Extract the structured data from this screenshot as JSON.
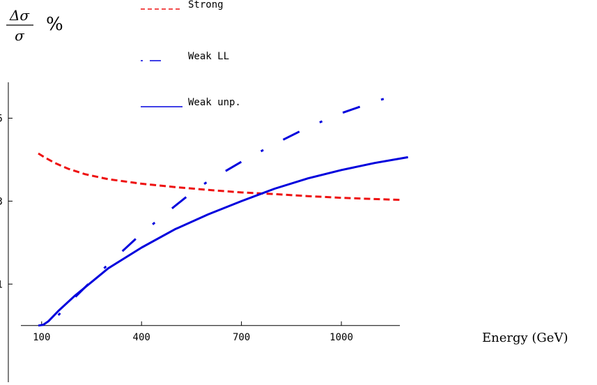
{
  "chart_data": {
    "type": "line",
    "ylabel": {
      "numerator": "Δσ",
      "denominator": "σ",
      "unit": "%"
    },
    "xlabel": "Energy (GeV)",
    "xlim": [
      -25,
      1230
    ],
    "ylim": [
      -1.4,
      6.0
    ],
    "x_ticks": [
      100,
      400,
      700,
      1000
    ],
    "y_ticks": [
      1,
      3,
      5
    ],
    "grid": false,
    "legend_position": "top-center",
    "series": [
      {
        "name": "Strong",
        "color": "#ee1111",
        "style": "dashed",
        "x": [
          90,
          110,
          140,
          180,
          230,
          300,
          400,
          500,
          600,
          700,
          800,
          900,
          1000,
          1100,
          1180
        ],
        "y": [
          4.15,
          4.05,
          3.92,
          3.78,
          3.65,
          3.53,
          3.42,
          3.34,
          3.27,
          3.21,
          3.17,
          3.12,
          3.08,
          3.05,
          3.03
        ]
      },
      {
        "name": "Weak LL",
        "color": "#0000dd",
        "style": "dash-dot",
        "x": [
          150,
          200,
          250,
          300,
          350,
          400,
          450,
          500,
          550,
          600,
          700,
          800,
          900,
          1000,
          1100,
          1150
        ],
        "y": [
          0.25,
          0.68,
          1.08,
          1.48,
          1.85,
          2.22,
          2.55,
          2.88,
          3.2,
          3.48,
          3.95,
          4.38,
          4.78,
          5.12,
          5.4,
          5.52
        ]
      },
      {
        "name": "Weak unp.",
        "color": "#0000dd",
        "style": "solid",
        "x": [
          90,
          105,
          120,
          150,
          200,
          250,
          300,
          400,
          500,
          600,
          700,
          800,
          900,
          1000,
          1100,
          1200
        ],
        "y": [
          0.0,
          0.02,
          0.1,
          0.35,
          0.72,
          1.05,
          1.38,
          1.88,
          2.32,
          2.68,
          3.0,
          3.3,
          3.55,
          3.75,
          3.92,
          4.06
        ]
      }
    ]
  }
}
